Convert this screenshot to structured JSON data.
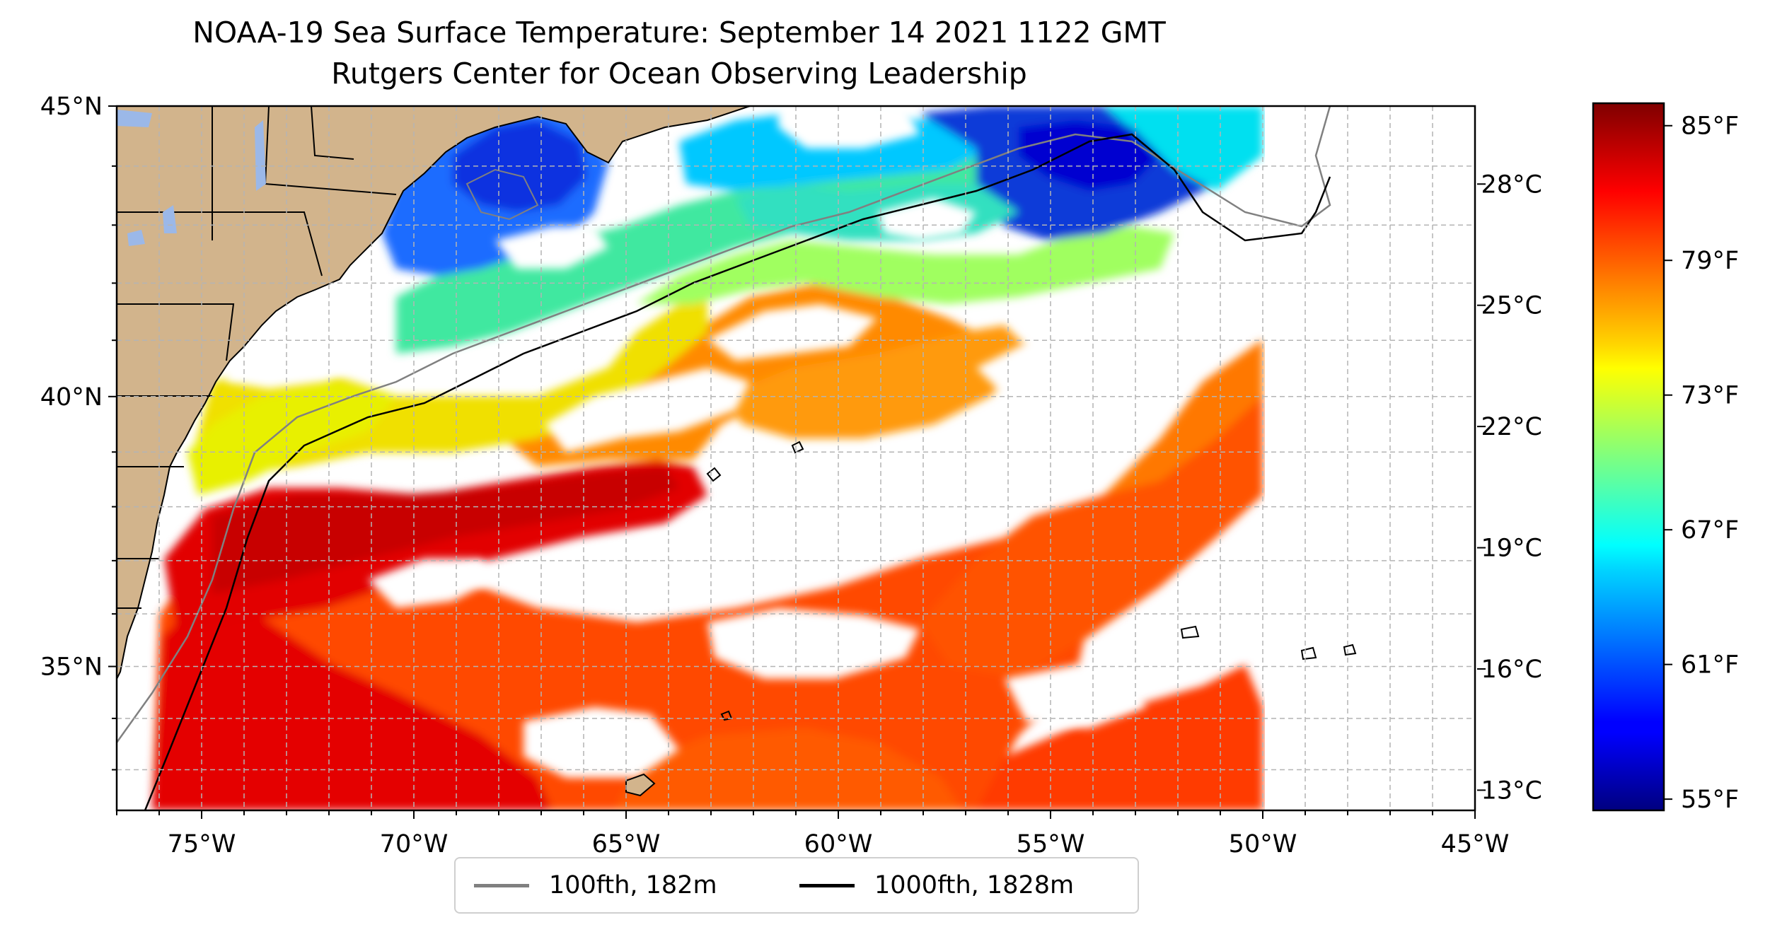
{
  "title": "NOAA-19 Sea Surface Temperature: September 14 2021 1122 GMT",
  "subtitle": "Rutgers Center for Ocean Observing Leadership",
  "map": {
    "extent": {
      "lon_min": -77,
      "lon_max": -45,
      "lat_min": 32.2,
      "lat_max": 45
    },
    "lon_ticks": [
      -75,
      -70,
      -65,
      -60,
      -55,
      -50,
      -45
    ],
    "lon_tick_labels": [
      "75°W",
      "70°W",
      "65°W",
      "60°W",
      "55°W",
      "50°W",
      "45°W"
    ],
    "lat_ticks": [
      35,
      40,
      45
    ],
    "lat_tick_labels": [
      "35°N",
      "40°N",
      "45°N"
    ],
    "gridlines": true,
    "colors": {
      "land": "#d2b48c",
      "lakes": "#9bb8e8",
      "clouds": "#ffffff",
      "grid": "#b4b4b4"
    }
  },
  "colorbar": {
    "colormap": "jet",
    "min_f": 54.5,
    "max_f": 86,
    "fahrenheit_ticks": [
      55,
      61,
      67,
      73,
      79,
      85
    ],
    "fahrenheit_labels": [
      "55°F",
      "61°F",
      "67°F",
      "73°F",
      "79°F",
      "85°F"
    ],
    "celsius_ticks": [
      13,
      16,
      19,
      22,
      25,
      28
    ],
    "celsius_labels": [
      "13°C",
      "16°C",
      "19°C",
      "22°C",
      "25°C",
      "28°C"
    ]
  },
  "legend": {
    "placement": "bottom-center",
    "items": [
      {
        "label": "100fth, 182m",
        "color": "#808080"
      },
      {
        "label": "1000fth, 1828m",
        "color": "#000000"
      }
    ]
  }
}
